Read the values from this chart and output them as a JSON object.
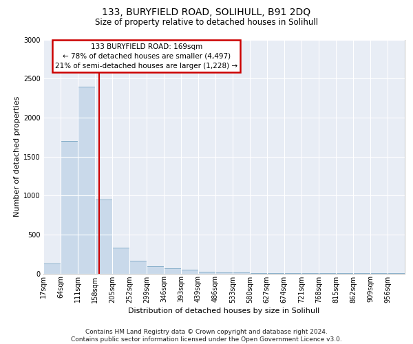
{
  "title1": "133, BURYFIELD ROAD, SOLIHULL, B91 2DQ",
  "title2": "Size of property relative to detached houses in Solihull",
  "xlabel": "Distribution of detached houses by size in Solihull",
  "ylabel": "Number of detached properties",
  "footer1": "Contains HM Land Registry data © Crown copyright and database right 2024.",
  "footer2": "Contains public sector information licensed under the Open Government Licence v3.0.",
  "annotation_line1": "133 BURYFIELD ROAD: 169sqm",
  "annotation_line2": "← 78% of detached houses are smaller (4,497)",
  "annotation_line3": "21% of semi-detached houses are larger (1,228) →",
  "bar_color": "#c9d9ea",
  "bar_edge_color": "#6699bb",
  "vline_color": "#cc0000",
  "vline_x": 169,
  "annotation_box_edge": "#cc0000",
  "categories": [
    "17sqm",
    "64sqm",
    "111sqm",
    "158sqm",
    "205sqm",
    "252sqm",
    "299sqm",
    "346sqm",
    "393sqm",
    "439sqm",
    "486sqm",
    "533sqm",
    "580sqm",
    "627sqm",
    "674sqm",
    "721sqm",
    "768sqm",
    "815sqm",
    "862sqm",
    "909sqm",
    "956sqm"
  ],
  "bin_edges": [
    17,
    64,
    111,
    158,
    205,
    252,
    299,
    346,
    393,
    439,
    486,
    533,
    580,
    627,
    674,
    721,
    768,
    815,
    862,
    909,
    956,
    1003
  ],
  "values": [
    130,
    1700,
    2400,
    950,
    330,
    160,
    90,
    65,
    45,
    20,
    15,
    12,
    8,
    5,
    5,
    4,
    3,
    3,
    2,
    2,
    2
  ],
  "ylim": [
    0,
    3000
  ],
  "yticks": [
    0,
    500,
    1000,
    1500,
    2000,
    2500,
    3000
  ],
  "bg_color": "#e8edf5",
  "grid_color": "#ffffff",
  "title1_fontsize": 10,
  "title2_fontsize": 8.5,
  "ylabel_fontsize": 8,
  "xlabel_fontsize": 8,
  "tick_fontsize": 7,
  "footer_fontsize": 6.5
}
